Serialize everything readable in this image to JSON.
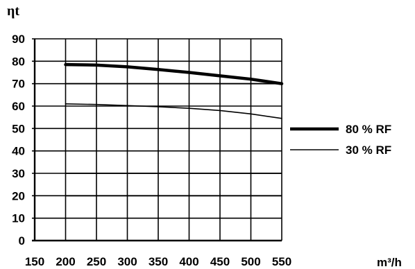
{
  "chart_data": {
    "type": "line",
    "ylabel": "ηt",
    "xlabel": "m³/h",
    "x_ticks": [
      "150",
      "200",
      "250",
      "300",
      "350",
      "400",
      "450",
      "500",
      "550"
    ],
    "y_ticks": [
      "0",
      "10",
      "20",
      "30",
      "40",
      "50",
      "60",
      "70",
      "80",
      "90"
    ],
    "xlim": [
      150,
      550
    ],
    "ylim": [
      0,
      90
    ],
    "grid": true,
    "legend_position": "right",
    "series": [
      {
        "name": "80 % RF",
        "style": "thick",
        "x": [
          200,
          250,
          300,
          350,
          400,
          450,
          500,
          550
        ],
        "y": [
          78.5,
          78.3,
          77.5,
          76.3,
          75.0,
          73.5,
          72.0,
          70.0
        ]
      },
      {
        "name": "30 % RF",
        "style": "thin",
        "x": [
          200,
          250,
          300,
          350,
          400,
          450,
          500,
          550
        ],
        "y": [
          61.0,
          60.7,
          60.2,
          59.7,
          59.0,
          58.0,
          56.5,
          54.5
        ]
      }
    ],
    "flat_lines": [
      {
        "y": 70,
        "x": [
          200,
          550
        ]
      },
      {
        "y": 30,
        "x": [
          200,
          550
        ]
      },
      {
        "y": 20,
        "x": [
          200,
          550
        ]
      }
    ]
  }
}
